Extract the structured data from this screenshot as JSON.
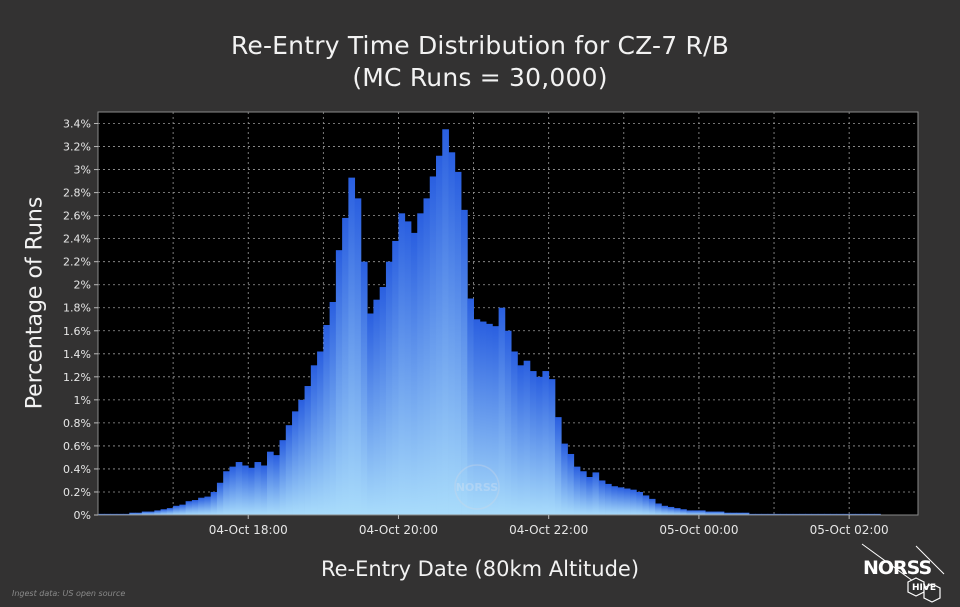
{
  "title": "Re-Entry Time Distribution for CZ-7 R/B",
  "subtitle": "(MC Runs = 30,000)",
  "credit": "Ingest data: US open source",
  "logo": {
    "line1": "NORSS",
    "line2": "HIVE"
  },
  "watermark": "NORSS",
  "colors": {
    "background": "#333232",
    "plot_background": "#000000",
    "bar_top": "#2a5fe0",
    "bar_bottom": "#a9dcfb",
    "grid": "#9a9a9a"
  },
  "chart_data": {
    "type": "bar",
    "title": "Re-Entry Time Distribution for CZ-7 R/B",
    "subtitle": "(MC Runs = 30,000)",
    "xlabel": "Re-Entry Date (80km Altitude)",
    "ylabel": "Percentage of Runs",
    "x_ticks": [
      "04-Oct 18:00",
      "04-Oct 20:00",
      "04-Oct 22:00",
      "05-Oct 00:00",
      "05-Oct 02:00"
    ],
    "y_ticks": [
      "0%",
      "0.2%",
      "0.4%",
      "0.6%",
      "0.8%",
      "1%",
      "1.2%",
      "1.4%",
      "1.6%",
      "1.8%",
      "2%",
      "2.2%",
      "2.4%",
      "2.6%",
      "2.8%",
      "3%",
      "3.2%",
      "3.4%"
    ],
    "ylim": [
      0,
      3.5
    ],
    "xlim": [
      "04-Oct 16:00",
      "05-Oct 02:55"
    ],
    "bin_minutes": 5,
    "first_bin_start": "04-Oct 16:00",
    "grid": true,
    "values": [
      0.01,
      0.01,
      0.01,
      0.01,
      0.01,
      0.02,
      0.02,
      0.03,
      0.03,
      0.04,
      0.05,
      0.06,
      0.08,
      0.09,
      0.12,
      0.13,
      0.15,
      0.16,
      0.2,
      0.28,
      0.38,
      0.42,
      0.46,
      0.43,
      0.41,
      0.46,
      0.43,
      0.55,
      0.52,
      0.65,
      0.78,
      0.9,
      1.0,
      1.12,
      1.3,
      1.42,
      1.65,
      1.85,
      2.3,
      2.58,
      2.93,
      2.75,
      2.2,
      1.75,
      1.87,
      1.98,
      2.2,
      2.38,
      2.62,
      2.55,
      2.45,
      2.62,
      2.75,
      2.94,
      3.12,
      3.35,
      3.15,
      2.98,
      2.65,
      1.88,
      1.7,
      1.68,
      1.66,
      1.64,
      1.8,
      1.6,
      1.42,
      1.3,
      1.34,
      1.25,
      1.2,
      1.25,
      1.18,
      0.85,
      0.62,
      0.53,
      0.42,
      0.38,
      0.33,
      0.37,
      0.3,
      0.27,
      0.25,
      0.24,
      0.23,
      0.22,
      0.2,
      0.17,
      0.14,
      0.1,
      0.08,
      0.07,
      0.06,
      0.05,
      0.04,
      0.04,
      0.04,
      0.03,
      0.03,
      0.03,
      0.02,
      0.02,
      0.02,
      0.02,
      0.01,
      0.01,
      0.01,
      0.01,
      0.01,
      0.01,
      0.01,
      0.01,
      0.01,
      0.01,
      0.01,
      0.01,
      0.01,
      0.01,
      0.01,
      0.01,
      0.01,
      0.01,
      0.01,
      0.01,
      0.01
    ]
  }
}
